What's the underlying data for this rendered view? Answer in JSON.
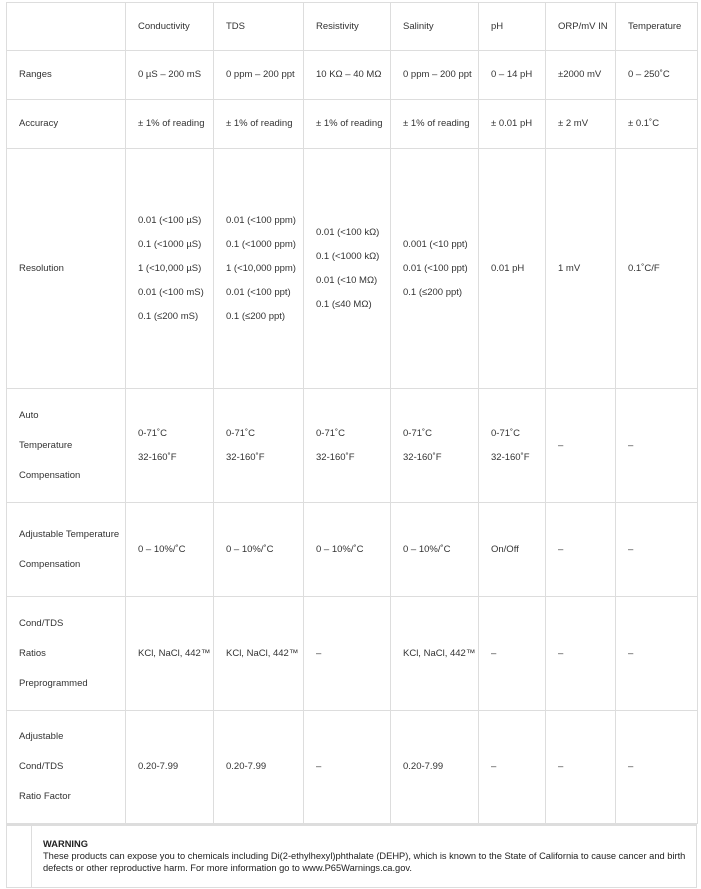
{
  "table": {
    "header": [
      "",
      "Conductivity",
      "TDS",
      "Resistivity",
      "Salinity",
      "pH",
      "ORP/mV IN",
      "Temperature"
    ],
    "rows": [
      {
        "label": [
          "Ranges"
        ],
        "cells": [
          [
            "0 µS – 200 mS"
          ],
          [
            "0 ppm – 200 ppt"
          ],
          [
            "10 KΩ – 40 MΩ"
          ],
          [
            "0 ppm – 200 ppt"
          ],
          [
            "0 – 14 pH"
          ],
          [
            "±2000 mV"
          ],
          [
            "0 – 250˚C"
          ]
        ]
      },
      {
        "label": [
          "Accuracy"
        ],
        "cells": [
          [
            "± 1% of reading"
          ],
          [
            "± 1% of reading"
          ],
          [
            "± 1% of reading"
          ],
          [
            "± 1% of reading"
          ],
          [
            "± 0.01 pH"
          ],
          [
            "± 2 mV"
          ],
          [
            "± 0.1˚C"
          ]
        ]
      },
      {
        "label": [
          "Resolution"
        ],
        "cells": [
          [
            "0.01 (<100 µS)",
            "0.1 (<1000 µS)",
            "1 (<10,000 µS)",
            "0.01 (<100 mS)",
            "0.1 (≤200 mS)"
          ],
          [
            "0.01 (<100 ppm)",
            "0.1 (<1000 ppm)",
            "1 (<10,000 ppm)",
            "0.01 (<100 ppt)",
            "0.1 (≤200 ppt)"
          ],
          [
            "0.01 (<100 kΩ)",
            "0.1 (<1000 kΩ)",
            "0.01 (<10 MΩ)",
            "0.1 (≤40 MΩ)"
          ],
          [
            "0.001 (<10 ppt)",
            "0.01 (<100 ppt)",
            "0.1 (≤200 ppt)"
          ],
          [
            "0.01 pH"
          ],
          [
            "1 mV"
          ],
          [
            "0.1˚C/F"
          ]
        ]
      },
      {
        "label": [
          "Auto",
          "Temperature",
          "Compensation"
        ],
        "cells": [
          [
            "0-71˚C",
            "32-160˚F"
          ],
          [
            "0-71˚C",
            "32-160˚F"
          ],
          [
            "0-71˚C",
            "32-160˚F"
          ],
          [
            "0-71˚C",
            "32-160˚F"
          ],
          [
            "0-71˚C",
            "32-160˚F"
          ],
          [
            "–"
          ],
          [
            "–"
          ]
        ]
      },
      {
        "label": [
          "Adjustable Temperature",
          "Compensation"
        ],
        "cells": [
          [
            "0 – 10%/˚C"
          ],
          [
            "0 – 10%/˚C"
          ],
          [
            "0 – 10%/˚C"
          ],
          [
            "0 – 10%/˚C"
          ],
          [
            "On/Off"
          ],
          [
            "–"
          ],
          [
            "–"
          ]
        ]
      },
      {
        "label": [
          "Cond/TDS",
          "Ratios",
          "Preprogrammed"
        ],
        "cells": [
          [
            "KCl, NaCl, 442™"
          ],
          [
            "KCl, NaCl, 442™"
          ],
          [
            "–"
          ],
          [
            "KCl, NaCl, 442™"
          ],
          [
            "–"
          ],
          [
            "–"
          ],
          [
            "–"
          ]
        ]
      },
      {
        "label": [
          "Adjustable",
          "Cond/TDS",
          "Ratio Factor"
        ],
        "cells": [
          [
            "0.20-7.99"
          ],
          [
            "0.20-7.99"
          ],
          [
            "–"
          ],
          [
            "0.20-7.99"
          ],
          [
            "–"
          ],
          [
            "–"
          ],
          [
            "–"
          ]
        ]
      }
    ]
  },
  "warning": {
    "title": "WARNING",
    "text": "These products can expose you to chemicals including Di(2-ethylhexyl)phthalate (DEHP), which is known to the State of California to cause cancer and birth defects or other reproductive harm. For more information go to www.P65Warnings.ca.gov."
  }
}
